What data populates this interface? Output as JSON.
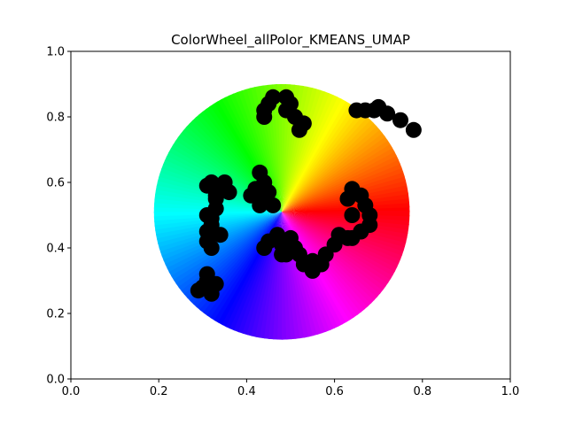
{
  "chart_data": {
    "type": "scatter",
    "title": "ColorWheel_allPolor_KMEANS_UMAP",
    "xlabel": "",
    "ylabel": "",
    "xlim": [
      0,
      1
    ],
    "ylim": [
      0,
      1
    ],
    "grid": false,
    "legend": "none",
    "x_ticks": [
      "0.0",
      "0.2",
      "0.4",
      "0.6",
      "0.8",
      "1.0"
    ],
    "y_ticks": [
      "0.0",
      "0.2",
      "0.4",
      "0.6",
      "0.8",
      "1.0"
    ],
    "background": {
      "type": "hue-wheel",
      "center": [
        0.48,
        0.51
      ],
      "radius": 0.39,
      "hue_at_0deg": "red",
      "direction": "counterclockwise"
    },
    "point_color": "#000000",
    "clusters": [
      {
        "points": [
          [
            0.45,
            0.84
          ],
          [
            0.44,
            0.82
          ],
          [
            0.46,
            0.86
          ],
          [
            0.44,
            0.8
          ]
        ]
      },
      {
        "points": [
          [
            0.49,
            0.86
          ],
          [
            0.49,
            0.82
          ],
          [
            0.51,
            0.8
          ],
          [
            0.53,
            0.78
          ],
          [
            0.52,
            0.76
          ],
          [
            0.5,
            0.84
          ]
        ]
      },
      {
        "points": [
          [
            0.65,
            0.82
          ],
          [
            0.69,
            0.82
          ],
          [
            0.72,
            0.81
          ],
          [
            0.75,
            0.79
          ],
          [
            0.78,
            0.76
          ],
          [
            0.7,
            0.83
          ],
          [
            0.67,
            0.82
          ]
        ]
      },
      {
        "points": [
          [
            0.32,
            0.6
          ],
          [
            0.34,
            0.58
          ],
          [
            0.36,
            0.57
          ],
          [
            0.33,
            0.56
          ],
          [
            0.31,
            0.59
          ],
          [
            0.35,
            0.6
          ]
        ]
      },
      {
        "points": [
          [
            0.43,
            0.63
          ],
          [
            0.44,
            0.6
          ],
          [
            0.45,
            0.57
          ],
          [
            0.42,
            0.58
          ],
          [
            0.44,
            0.55
          ],
          [
            0.46,
            0.53
          ],
          [
            0.43,
            0.53
          ],
          [
            0.41,
            0.56
          ]
        ]
      },
      {
        "points": [
          [
            0.33,
            0.55
          ],
          [
            0.33,
            0.52
          ],
          [
            0.32,
            0.49
          ],
          [
            0.32,
            0.47
          ],
          [
            0.31,
            0.45
          ],
          [
            0.31,
            0.42
          ],
          [
            0.32,
            0.4
          ],
          [
            0.34,
            0.44
          ],
          [
            0.31,
            0.5
          ]
        ]
      },
      {
        "points": [
          [
            0.31,
            0.3
          ],
          [
            0.3,
            0.28
          ],
          [
            0.32,
            0.26
          ],
          [
            0.33,
            0.29
          ],
          [
            0.31,
            0.32
          ],
          [
            0.29,
            0.27
          ]
        ]
      },
      {
        "points": [
          [
            0.64,
            0.58
          ],
          [
            0.66,
            0.56
          ],
          [
            0.67,
            0.53
          ],
          [
            0.68,
            0.5
          ],
          [
            0.68,
            0.47
          ],
          [
            0.66,
            0.45
          ],
          [
            0.64,
            0.43
          ],
          [
            0.64,
            0.5
          ],
          [
            0.63,
            0.55
          ]
        ]
      },
      {
        "points": [
          [
            0.44,
            0.4
          ],
          [
            0.45,
            0.42
          ],
          [
            0.47,
            0.44
          ],
          [
            0.48,
            0.41
          ],
          [
            0.48,
            0.38
          ],
          [
            0.5,
            0.43
          ],
          [
            0.51,
            0.4
          ],
          [
            0.49,
            0.38
          ]
        ]
      },
      {
        "points": [
          [
            0.52,
            0.38
          ],
          [
            0.53,
            0.35
          ],
          [
            0.55,
            0.33
          ],
          [
            0.57,
            0.35
          ],
          [
            0.58,
            0.38
          ],
          [
            0.6,
            0.41
          ],
          [
            0.61,
            0.44
          ],
          [
            0.63,
            0.43
          ],
          [
            0.55,
            0.36
          ]
        ]
      }
    ]
  }
}
